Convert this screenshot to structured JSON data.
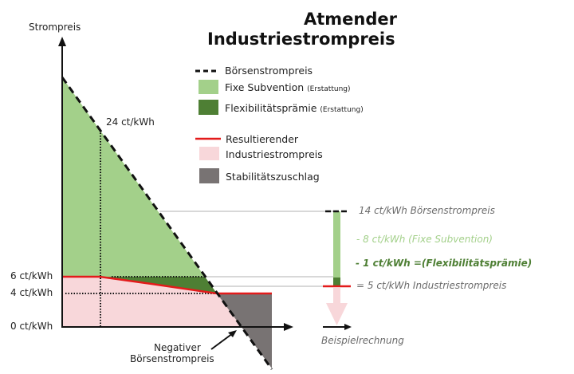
{
  "title": {
    "line1": "Atmender",
    "line2": "Industriestrompreis"
  },
  "axes": {
    "ylabel": "Strompreis",
    "ticks": [
      "6 ct/kWh",
      "4 ct/kWh",
      "0 ct/kWh"
    ],
    "point_label": "24 ct/kWh"
  },
  "legend": [
    {
      "label": "Börsenstrompreis",
      "symbol": "dashed-line",
      "color": "#111111"
    },
    {
      "label": "Fixe Subvention",
      "note": "(Erstattung)",
      "color": "#a3d08a"
    },
    {
      "label": "Flexibilitätsprämie",
      "note": "(Erstattung)",
      "color": "#4e7f34"
    },
    {
      "label": "Resultierender",
      "label2": "Industriestrompreis",
      "symbol": "red-line",
      "color": "#e31b1b",
      "fill": "#f8d7da"
    },
    {
      "label": "Stabilitätszuschlag",
      "color": "#787373"
    }
  ],
  "annotation": {
    "line1": "Negativer",
    "line2": "Börsenstrompreis"
  },
  "example": {
    "title": "Beispielrechnung",
    "lines": [
      {
        "text": "14 ct/kWh Börsenstrompreis",
        "color": "#6b6b6b"
      },
      {
        "text": "- 8 ct/kWh (Fixe Subvention)",
        "color": "#a3d08a"
      },
      {
        "text": "- 1 ct/kWh =(Flexibilitätsprämie)",
        "color": "#4e7f34"
      },
      {
        "text": "= 5 ct/kWh Industriestrompreis",
        "color": "#6b6b6b"
      }
    ]
  }
}
